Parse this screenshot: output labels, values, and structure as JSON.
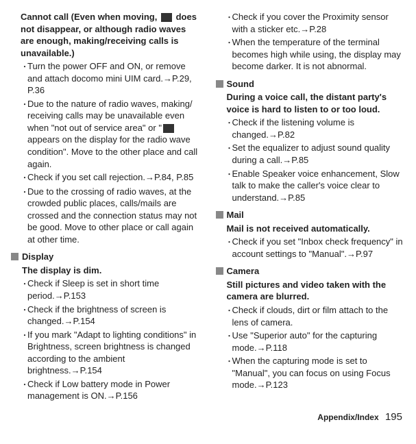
{
  "left": {
    "head": "Cannot call (Even when moving, [icon] does not disappear, or although radio waves are enough, making/receiving calls is unavailable.)",
    "b1": "Turn the power OFF and ON, or remove and attach docomo mini UIM card.→P.29, P.36",
    "b2": "Due to the nature of radio waves, making/receiving calls may be unavailable even when \"not out of service area\" or \"[icon] appears on the display for the radio wave condition\". Move to the other place and call again.",
    "b3": "Check if you set call rejection.→P.84, P.85",
    "b4": "Due to the crossing of radio waves, at the crowded public places, calls/mails are crossed and the connection status may not be good. Move to other place or call again at other time.",
    "display": "Display",
    "sub_display": "The display is dim.",
    "d1": "Check if Sleep is set in short time period.→P.153",
    "d2": "Check if the brightness of screen is changed.→P.154",
    "d3": "If you mark \"Adapt to lighting conditions\" in Brightness, screen brightness is changed according to the ambient brightness.→P.154",
    "d4": "Check if Low battery mode in Power management is ON.→P.156"
  },
  "right": {
    "r1": "Check if you cover the Proximity sensor with a sticker etc.→P.28",
    "r2": "When the temperature of the terminal becomes high while using, the display may become darker. It is not abnormal.",
    "sound": "Sound",
    "sub_sound": "During a voice call, the distant party's voice is hard to listen to or too loud.",
    "s1": "Check if the listening volume is changed.→P.82",
    "s2": "Set the equalizer to adjust sound quality during a call.→P.85",
    "s3": "Enable Speaker voice enhancement, Slow talk to make the caller's voice clear to understand.→P.85",
    "mail": "Mail",
    "sub_mail": "Mail is not received automatically.",
    "m1": "Check if you set \"Inbox check frequency\" in account settings to \"Manual\".→P.97",
    "camera": "Camera",
    "sub_camera": "Still pictures and video taken with the camera are blurred.",
    "c1": "Check if clouds, dirt or film attach to the lens of camera.",
    "c2": "Use \"Superior auto\" for the capturing mode.→P.118",
    "c3": "When the capturing mode is set to \"Manual\", you can focus on using Focus mode.→P.123"
  },
  "footer_label": "Appendix/Index",
  "page_number": "195"
}
